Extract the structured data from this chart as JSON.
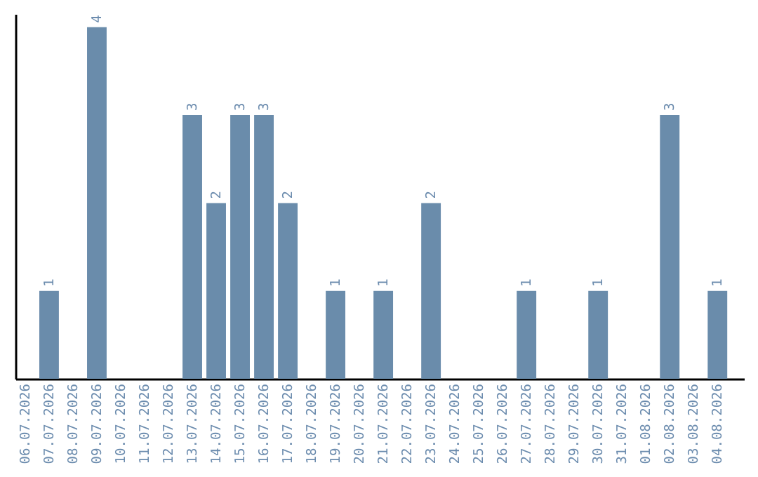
{
  "chart_data": {
    "type": "bar",
    "categories": [
      "06.07.2026",
      "07.07.2026",
      "08.07.2026",
      "09.07.2026",
      "10.07.2026",
      "11.07.2026",
      "12.07.2026",
      "13.07.2026",
      "14.07.2026",
      "15.07.2026",
      "16.07.2026",
      "17.07.2026",
      "18.07.2026",
      "19.07.2026",
      "20.07.2026",
      "21.07.2026",
      "22.07.2026",
      "23.07.2026",
      "24.07.2026",
      "25.07.2026",
      "26.07.2026",
      "27.07.2026",
      "28.07.2026",
      "29.07.2026",
      "30.07.2026",
      "31.07.2026",
      "01.08.2026",
      "02.08.2026",
      "03.08.2026",
      "04.08.2026"
    ],
    "values": [
      0,
      1,
      0,
      4,
      0,
      0,
      0,
      3,
      2,
      3,
      3,
      2,
      0,
      1,
      0,
      1,
      0,
      2,
      0,
      0,
      0,
      1,
      0,
      0,
      1,
      0,
      0,
      3,
      0,
      1
    ],
    "value_labels": [
      null,
      "1",
      null,
      "4",
      null,
      null,
      null,
      "3",
      "2",
      "3",
      "3",
      "2",
      null,
      "1",
      null,
      "1",
      null,
      "2",
      null,
      null,
      null,
      "1",
      null,
      null,
      "1",
      null,
      null,
      "3",
      null,
      "1"
    ],
    "color": "#6a8cab",
    "ylim": [
      0,
      4.15
    ],
    "tick_labels": "x",
    "grid": false
  }
}
